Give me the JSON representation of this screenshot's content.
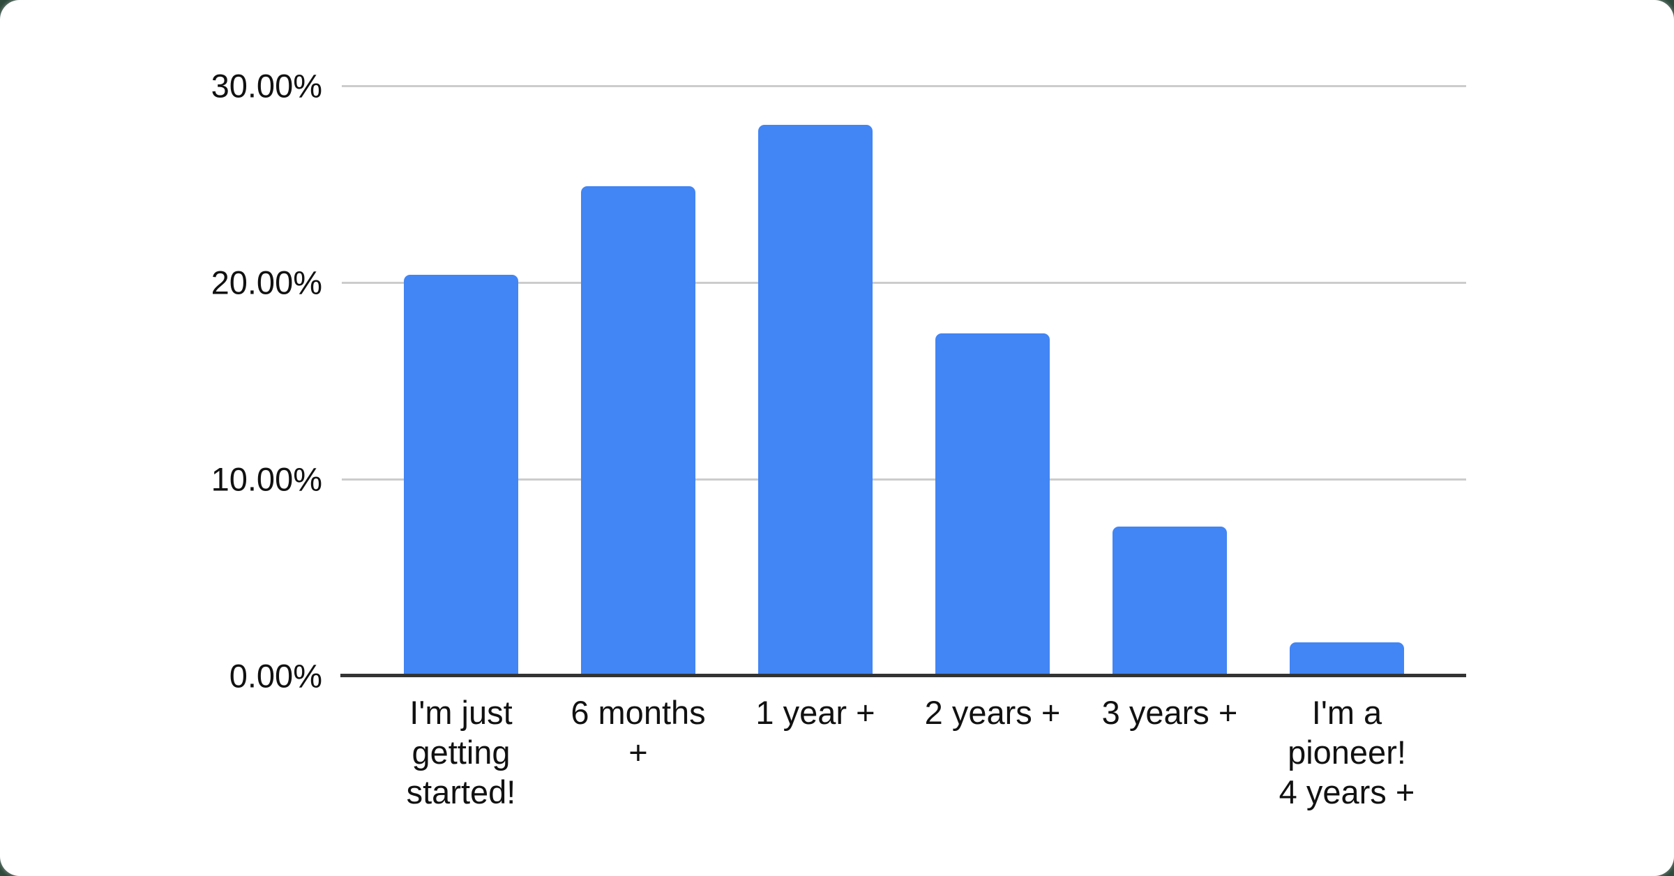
{
  "chart_data": {
    "type": "bar",
    "title": "",
    "xlabel": "",
    "ylabel": "",
    "categories": [
      "I'm just\ngetting\nstarted!",
      "6 months\n+",
      "1 year +",
      "2 years +",
      "3 years +",
      "I'm a\npioneer!\n4 years +"
    ],
    "values": [
      20.4,
      24.9,
      28.0,
      17.4,
      7.6,
      1.7
    ],
    "y_ticks": [
      {
        "label": "30.00%",
        "value": 30
      },
      {
        "label": "20.00%",
        "value": 20
      },
      {
        "label": "10.00%",
        "value": 10
      },
      {
        "label": "0.00%",
        "value": 0
      }
    ],
    "ylim": [
      0,
      30
    ],
    "grid": true,
    "legend": "none",
    "colors": {
      "bar": "#4285f4",
      "gridline": "#cccccc",
      "axis_line": "#333333",
      "tick_text": "#111111",
      "card_background": "#ffffff",
      "page_background": "#2e4b3c"
    }
  }
}
